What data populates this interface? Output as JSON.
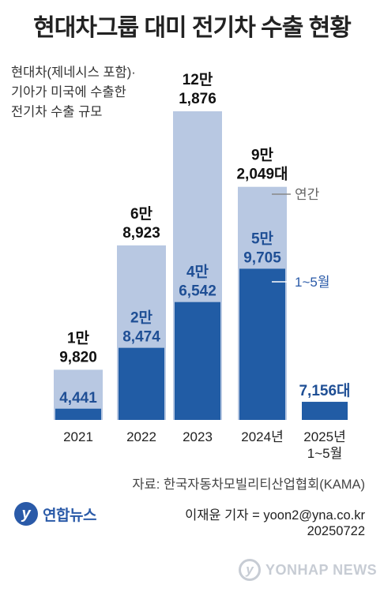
{
  "header": {
    "title": "현대차그룹 대미 전기차 수출 현황",
    "subtitle_lines": [
      "현대차(제네시스 포함)·",
      "기아가 미국에 수출한",
      "전기차 수출 규모"
    ]
  },
  "chart_data": {
    "type": "bar",
    "categories": [
      "2021",
      "2022",
      "2023",
      "2024년",
      "2025년 1~5월"
    ],
    "category_labels": [
      [
        "2021"
      ],
      [
        "2022"
      ],
      [
        "2023"
      ],
      [
        "2024년"
      ],
      [
        "2025년",
        "1~5월"
      ]
    ],
    "series": [
      {
        "name": "연간",
        "values": [
          19820,
          68923,
          121876,
          92049,
          null
        ],
        "color": "#b8c8e2"
      },
      {
        "name": "1~5월",
        "values": [
          4441,
          28474,
          46542,
          59705,
          7156
        ],
        "color": "#215ca5"
      }
    ],
    "annual_labels": [
      [
        "1만",
        "9,820"
      ],
      [
        "6만",
        "8,923"
      ],
      [
        "12만",
        "1,876"
      ],
      [
        "9만",
        "2,049대"
      ],
      null
    ],
    "partial_labels": [
      [
        "4,441"
      ],
      [
        "2만",
        "8,474"
      ],
      [
        "4만",
        "6,542"
      ],
      [
        "5만",
        "9,705"
      ],
      [
        "7,156대"
      ]
    ],
    "legend_labels": {
      "annual": "연간",
      "partial": "1~5월"
    },
    "unit": "대",
    "ylim": [
      0,
      121876
    ]
  },
  "footer": {
    "source": "자료: 한국자동차모빌리티산업협회(KAMA)",
    "reporter": "이재윤 기자 = yoon2@yna.co.kr",
    "date": "20250722",
    "logo_text": "연합뉴스",
    "watermark_text": "YONHAP NEWS"
  }
}
